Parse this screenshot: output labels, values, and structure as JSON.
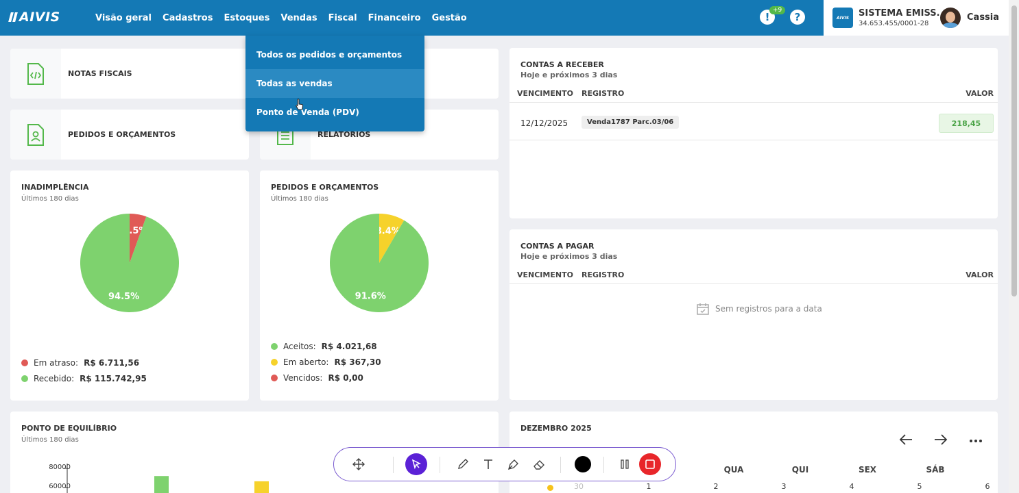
{
  "app": {
    "logo_text": "AIVIS"
  },
  "nav": {
    "items": [
      "Visão geral",
      "Cadastros",
      "Estoques",
      "Vendas",
      "Fiscal",
      "Financeiro",
      "Gestão"
    ],
    "notif_badge": "+9",
    "alert_glyph": "!",
    "help_glyph": "?"
  },
  "company": {
    "logo_text": "AIVIS",
    "name": "SISTEMA EMISS...",
    "cnpj": "34.653.455/0001-28"
  },
  "user": {
    "name": "Cassia"
  },
  "dropdown": {
    "items": [
      "Todos os pedidos e orçamentos",
      "Todas as vendas",
      "Ponto de Venda (PDV)"
    ],
    "hovered_index": 1
  },
  "shortcuts": {
    "notas": "NOTAS FISCAIS",
    "pedidos": "PEDIDOS E ORÇAMENTOS",
    "relatorios": "RELATÓRIOS"
  },
  "inadimplencia": {
    "title": "INADIMPLÊNCIA",
    "subtitle": "Últimos 180 dias",
    "legend": [
      {
        "label": "Em atraso:",
        "value": "R$ 6.711,56",
        "color": "#e05a56"
      },
      {
        "label": "Recebido:",
        "value": "R$ 115.742,95",
        "color": "#7ed26e"
      }
    ]
  },
  "pedidos": {
    "title": "PEDIDOS E ORÇAMENTOS",
    "subtitle": "Últimos 180 dias",
    "legend": [
      {
        "label": "Aceitos:",
        "value": "R$ 4.021,68",
        "color": "#7ed26e"
      },
      {
        "label": "Em aberto:",
        "value": "R$ 367,30",
        "color": "#f6d22b"
      },
      {
        "label": "Vencidos:",
        "value": "R$ 0,00",
        "color": "#e05a56"
      }
    ]
  },
  "chart_data": [
    {
      "type": "pie",
      "title": "INADIMPLÊNCIA",
      "slices": [
        {
          "label": "Em atraso",
          "value": 5.5,
          "text": "5.5%",
          "color": "#e05a56"
        },
        {
          "label": "Recebido",
          "value": 94.5,
          "text": "94.5%",
          "color": "#7ed26e"
        }
      ]
    },
    {
      "type": "pie",
      "title": "PEDIDOS E ORÇAMENTOS",
      "slices": [
        {
          "label": "Em aberto",
          "value": 8.4,
          "text": "8.4%",
          "color": "#f6d22b"
        },
        {
          "label": "Aceitos",
          "value": 91.6,
          "text": "91.6%",
          "color": "#7ed26e"
        }
      ]
    },
    {
      "type": "bar",
      "title": "PONTO DE EQUILÍBRIO",
      "y_ticks": [
        "80000",
        "60000"
      ],
      "ylim": [
        60000,
        80000
      ],
      "bars": [
        {
          "value": 72000,
          "color": "#7ed26e"
        },
        {
          "value": 66500,
          "color": "#f6d22b"
        }
      ]
    }
  ],
  "contas_receber": {
    "title": "CONTAS A RECEBER",
    "subtitle": "Hoje e próximos 3 dias",
    "headers": {
      "vencimento": "VENCIMENTO",
      "registro": "REGISTRO",
      "valor": "VALOR"
    },
    "rows": [
      {
        "date": "12/12/2025",
        "registro": "Venda1787 Parc.03/06",
        "valor": "218,45"
      }
    ]
  },
  "contas_pagar": {
    "title": "CONTAS A PAGAR",
    "subtitle": "Hoje e próximos 3 dias",
    "headers": {
      "vencimento": "VENCIMENTO",
      "registro": "REGISTRO",
      "valor": "VALOR"
    },
    "empty": "Sem registros para a data"
  },
  "equilibrio": {
    "title": "PONTO DE EQUILÍBRIO",
    "subtitle": "Últimos 180 dias"
  },
  "calendar": {
    "month": "DEZEMBRO 2025",
    "weekdays": [
      "QUA",
      "QUI",
      "SEX",
      "SÁB"
    ],
    "days": [
      "30",
      "1",
      "2",
      "3",
      "4",
      "5",
      "6"
    ]
  }
}
